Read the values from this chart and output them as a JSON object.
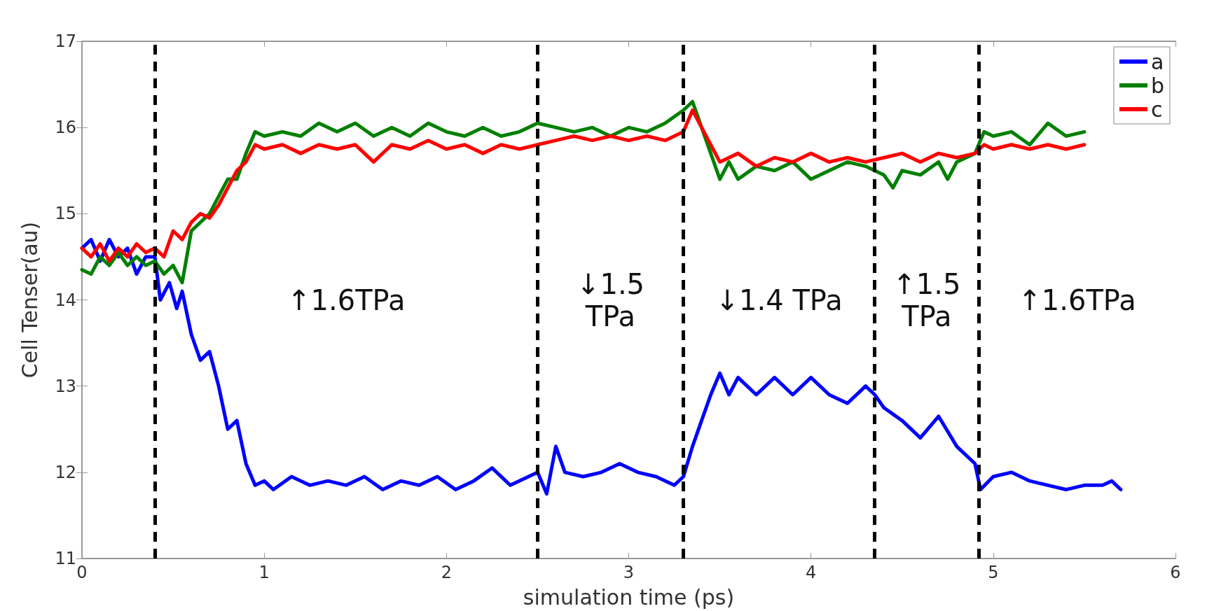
{
  "chart_data": {
    "type": "line",
    "xlabel": "simulation time (ps)",
    "ylabel": "Cell Tenser(au)",
    "xlim": [
      0,
      6
    ],
    "xticks": [
      0,
      1,
      2,
      3,
      4,
      5,
      6
    ],
    "ylim": [
      11,
      17
    ],
    "yticks": [
      11,
      12,
      13,
      14,
      15,
      16,
      17
    ],
    "grid": false,
    "legend": "top right",
    "marker": "none",
    "line_style": "solid",
    "series": [
      {
        "name": "a",
        "color": "#0000ff",
        "x": [
          0,
          0.05,
          0.1,
          0.15,
          0.2,
          0.25,
          0.3,
          0.35,
          0.4,
          0.43,
          0.48,
          0.52,
          0.55,
          0.6,
          0.65,
          0.7,
          0.75,
          0.8,
          0.85,
          0.9,
          0.95,
          1.0,
          1.05,
          1.15,
          1.25,
          1.35,
          1.45,
          1.55,
          1.65,
          1.75,
          1.85,
          1.95,
          2.05,
          2.15,
          2.25,
          2.35,
          2.45,
          2.5,
          2.55,
          2.6,
          2.65,
          2.75,
          2.85,
          2.95,
          3.05,
          3.15,
          3.25,
          3.3,
          3.35,
          3.4,
          3.45,
          3.5,
          3.55,
          3.6,
          3.7,
          3.8,
          3.9,
          4.0,
          4.1,
          4.2,
          4.3,
          4.35,
          4.4,
          4.5,
          4.6,
          4.7,
          4.8,
          4.9,
          4.93,
          5.0,
          5.1,
          5.2,
          5.3,
          5.4,
          5.5,
          5.6,
          5.65,
          5.7
        ],
        "values": [
          14.6,
          14.7,
          14.45,
          14.7,
          14.5,
          14.6,
          14.3,
          14.5,
          14.5,
          14.0,
          14.2,
          13.9,
          14.1,
          13.6,
          13.3,
          13.4,
          13.0,
          12.5,
          12.6,
          12.1,
          11.85,
          11.9,
          11.8,
          11.95,
          11.85,
          11.9,
          11.85,
          11.95,
          11.8,
          11.9,
          11.85,
          11.95,
          11.8,
          11.9,
          12.05,
          11.85,
          11.95,
          12.0,
          11.75,
          12.3,
          12.0,
          11.95,
          12.0,
          12.1,
          12.0,
          11.95,
          11.85,
          11.95,
          12.3,
          12.6,
          12.9,
          13.15,
          12.9,
          13.1,
          12.9,
          13.1,
          12.9,
          13.1,
          12.9,
          12.8,
          13.0,
          12.9,
          12.75,
          12.6,
          12.4,
          12.65,
          12.3,
          12.1,
          11.8,
          11.95,
          12.0,
          11.9,
          11.85,
          11.8,
          11.85,
          11.85,
          11.9,
          11.8
        ]
      },
      {
        "name": "b",
        "color": "#008000",
        "x": [
          0,
          0.05,
          0.1,
          0.15,
          0.2,
          0.25,
          0.3,
          0.35,
          0.4,
          0.45,
          0.5,
          0.55,
          0.6,
          0.65,
          0.7,
          0.75,
          0.8,
          0.85,
          0.9,
          0.95,
          1.0,
          1.1,
          1.2,
          1.3,
          1.4,
          1.5,
          1.6,
          1.7,
          1.8,
          1.9,
          2.0,
          2.1,
          2.2,
          2.3,
          2.4,
          2.5,
          2.6,
          2.7,
          2.8,
          2.9,
          3.0,
          3.1,
          3.2,
          3.3,
          3.35,
          3.4,
          3.45,
          3.5,
          3.55,
          3.6,
          3.7,
          3.8,
          3.9,
          4.0,
          4.1,
          4.2,
          4.3,
          4.4,
          4.45,
          4.5,
          4.6,
          4.7,
          4.75,
          4.8,
          4.9,
          4.95,
          5.0,
          5.1,
          5.2,
          5.3,
          5.4,
          5.5
        ],
        "values": [
          14.35,
          14.3,
          14.5,
          14.4,
          14.55,
          14.4,
          14.5,
          14.4,
          14.45,
          14.3,
          14.4,
          14.2,
          14.8,
          14.9,
          15.0,
          15.2,
          15.4,
          15.4,
          15.7,
          15.95,
          15.9,
          15.95,
          15.9,
          16.05,
          15.95,
          16.05,
          15.9,
          16.0,
          15.9,
          16.05,
          15.95,
          15.9,
          16.0,
          15.9,
          15.95,
          16.05,
          16.0,
          15.95,
          16.0,
          15.9,
          16.0,
          15.95,
          16.05,
          16.2,
          16.3,
          16.0,
          15.7,
          15.4,
          15.6,
          15.4,
          15.55,
          15.5,
          15.6,
          15.4,
          15.5,
          15.6,
          15.55,
          15.45,
          15.3,
          15.5,
          15.45,
          15.6,
          15.4,
          15.6,
          15.7,
          15.95,
          15.9,
          15.95,
          15.8,
          16.05,
          15.9,
          15.95
        ]
      },
      {
        "name": "c",
        "color": "#ff0000",
        "x": [
          0,
          0.05,
          0.1,
          0.15,
          0.2,
          0.25,
          0.3,
          0.35,
          0.4,
          0.45,
          0.5,
          0.55,
          0.6,
          0.65,
          0.7,
          0.75,
          0.8,
          0.85,
          0.9,
          0.95,
          1.0,
          1.1,
          1.2,
          1.3,
          1.4,
          1.5,
          1.6,
          1.7,
          1.8,
          1.9,
          2.0,
          2.1,
          2.2,
          2.3,
          2.4,
          2.5,
          2.6,
          2.7,
          2.8,
          2.9,
          3.0,
          3.1,
          3.2,
          3.3,
          3.35,
          3.4,
          3.45,
          3.5,
          3.6,
          3.7,
          3.8,
          3.9,
          4.0,
          4.1,
          4.2,
          4.3,
          4.4,
          4.5,
          4.6,
          4.7,
          4.8,
          4.9,
          4.95,
          5.0,
          5.1,
          5.2,
          5.3,
          5.4,
          5.5
        ],
        "values": [
          14.6,
          14.5,
          14.65,
          14.45,
          14.6,
          14.5,
          14.65,
          14.55,
          14.6,
          14.5,
          14.8,
          14.7,
          14.9,
          15.0,
          14.95,
          15.1,
          15.3,
          15.5,
          15.6,
          15.8,
          15.75,
          15.8,
          15.7,
          15.8,
          15.75,
          15.8,
          15.6,
          15.8,
          15.75,
          15.85,
          15.75,
          15.8,
          15.7,
          15.8,
          15.75,
          15.8,
          15.85,
          15.9,
          15.85,
          15.9,
          15.85,
          15.9,
          15.85,
          15.95,
          16.2,
          16.0,
          15.8,
          15.6,
          15.7,
          15.55,
          15.65,
          15.6,
          15.7,
          15.6,
          15.65,
          15.6,
          15.65,
          15.7,
          15.6,
          15.7,
          15.65,
          15.7,
          15.8,
          15.75,
          15.8,
          15.75,
          15.8,
          15.75,
          15.8
        ]
      }
    ],
    "ref_lines": [
      {
        "axis": "x",
        "value": 0.4,
        "color": "#000000",
        "line_style": "dashed"
      },
      {
        "axis": "x",
        "value": 2.5,
        "color": "#000000",
        "line_style": "dashed"
      },
      {
        "axis": "x",
        "value": 3.3,
        "color": "#000000",
        "line_style": "dashed"
      },
      {
        "axis": "x",
        "value": 4.35,
        "color": "#000000",
        "line_style": "dashed"
      },
      {
        "axis": "x",
        "value": 4.92,
        "color": "#000000",
        "line_style": "dashed"
      }
    ],
    "annotations": [
      "↑1.6TPa",
      "↓1.5\nTPa",
      "↓1.4 TPa",
      "↑1.5\nTPa",
      "↑1.6TPa"
    ]
  }
}
